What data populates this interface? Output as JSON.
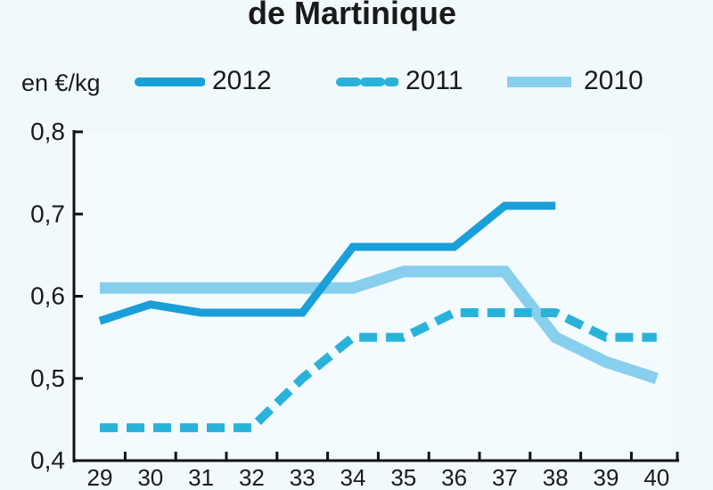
{
  "chart_data": {
    "type": "line",
    "title": "de Martinique",
    "unit_label": "en €/kg",
    "x": [
      "29",
      "30",
      "31",
      "32",
      "33",
      "34",
      "35",
      "36",
      "37",
      "38",
      "39",
      "40"
    ],
    "ylim": [
      0.4,
      0.8
    ],
    "yticks": [
      "0,4",
      "0,5",
      "0,6",
      "0,7",
      "0,8"
    ],
    "ytick_values": [
      0.4,
      0.5,
      0.6,
      0.7,
      0.8
    ],
    "grid": false,
    "legend_position": "top",
    "series": [
      {
        "name": "2012",
        "color": "#1a9fd8",
        "style": "solid",
        "values": [
          0.57,
          0.59,
          0.58,
          0.58,
          0.58,
          0.66,
          0.66,
          0.66,
          0.71,
          0.71,
          null,
          null
        ]
      },
      {
        "name": "2011",
        "color": "#29b3db",
        "style": "dashed",
        "values": [
          0.44,
          0.44,
          0.44,
          0.44,
          0.5,
          0.55,
          0.55,
          0.58,
          0.58,
          0.58,
          0.55,
          0.55
        ]
      },
      {
        "name": "2010",
        "color": "#88cfee",
        "style": "light",
        "values": [
          0.61,
          0.61,
          0.61,
          0.61,
          0.61,
          0.61,
          0.63,
          0.63,
          0.63,
          0.55,
          0.52,
          0.5
        ]
      }
    ]
  }
}
